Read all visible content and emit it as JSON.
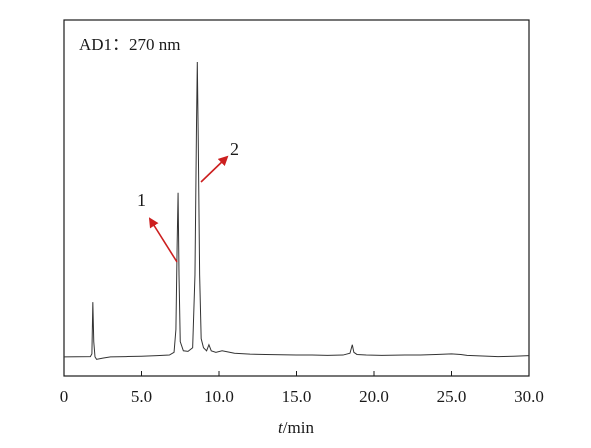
{
  "chart_data": {
    "type": "line",
    "title": "AD1：270 nm",
    "xlabel_italic": "t",
    "xlabel_unit": "/min",
    "xlim": [
      0,
      30
    ],
    "ylim": [
      0,
      100
    ],
    "x_ticks": [
      0,
      5,
      10,
      15,
      20,
      25,
      30
    ],
    "x_tick_labels": [
      "0",
      "5.0",
      "10.0",
      "15.0",
      "20.0",
      "25.0",
      "30.0"
    ],
    "grid": false,
    "series": [
      {
        "color": "#333333",
        "points": [
          [
            0,
            3
          ],
          [
            1.7,
            3.1
          ],
          [
            1.8,
            4
          ],
          [
            1.86,
            21
          ],
          [
            1.92,
            8
          ],
          [
            2.0,
            3
          ],
          [
            2.1,
            2.2
          ],
          [
            2.3,
            2.4
          ],
          [
            2.5,
            2.6
          ],
          [
            3.0,
            3.0
          ],
          [
            4.0,
            3.1
          ],
          [
            5.0,
            3.2
          ],
          [
            6.0,
            3.4
          ],
          [
            6.8,
            3.6
          ],
          [
            7.1,
            4.5
          ],
          [
            7.22,
            12
          ],
          [
            7.3,
            40
          ],
          [
            7.36,
            57
          ],
          [
            7.42,
            30
          ],
          [
            7.5,
            8
          ],
          [
            7.7,
            5
          ],
          [
            8.0,
            4.8
          ],
          [
            8.3,
            6
          ],
          [
            8.45,
            30
          ],
          [
            8.55,
            80
          ],
          [
            8.6,
            100
          ],
          [
            8.66,
            75
          ],
          [
            8.75,
            30
          ],
          [
            8.85,
            9
          ],
          [
            9.0,
            6
          ],
          [
            9.2,
            5
          ],
          [
            9.35,
            7
          ],
          [
            9.5,
            5
          ],
          [
            9.8,
            4.5
          ],
          [
            10.2,
            5
          ],
          [
            10.6,
            4.6
          ],
          [
            11.0,
            4.2
          ],
          [
            12.0,
            3.9
          ],
          [
            13.0,
            3.8
          ],
          [
            14.0,
            3.7
          ],
          [
            15.0,
            3.6
          ],
          [
            16.0,
            3.6
          ],
          [
            17.0,
            3.5
          ],
          [
            18.0,
            3.6
          ],
          [
            18.45,
            4.2
          ],
          [
            18.6,
            7
          ],
          [
            18.7,
            4.5
          ],
          [
            18.9,
            3.8
          ],
          [
            19.5,
            3.6
          ],
          [
            20.5,
            3.5
          ],
          [
            22.0,
            3.6
          ],
          [
            23.0,
            3.6
          ],
          [
            24.0,
            3.8
          ],
          [
            25.0,
            4.0
          ],
          [
            25.6,
            3.8
          ],
          [
            26.0,
            3.5
          ],
          [
            27.0,
            3.3
          ],
          [
            28.0,
            3.1
          ],
          [
            29.0,
            3.2
          ],
          [
            30.0,
            3.4
          ]
        ]
      }
    ],
    "annotations": [
      {
        "label": "1",
        "peak_x": 7.36,
        "color": "#cc1f1f"
      },
      {
        "label": "2",
        "peak_x": 8.6,
        "color": "#cc1f1f"
      }
    ]
  }
}
